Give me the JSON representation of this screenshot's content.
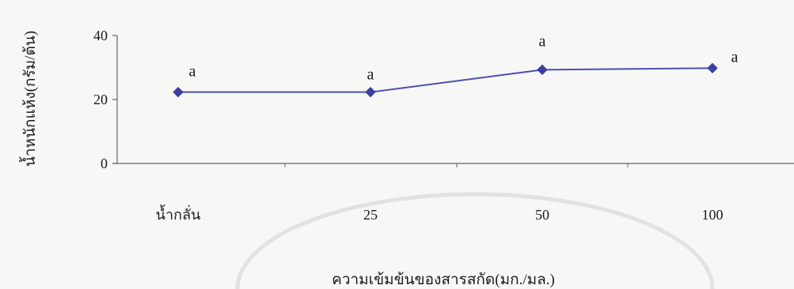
{
  "chart_data": {
    "type": "line",
    "categories": [
      "น้ำกลั่น",
      "25",
      "50",
      "100"
    ],
    "series": [
      {
        "values": [
          22.3,
          22.3,
          29.3,
          29.8
        ],
        "labels": [
          "a",
          "a",
          "a",
          "a"
        ]
      }
    ],
    "xlabel": "ความเข้มข้นของสารสกัด(มก./มล.)",
    "ylabel": "น้ำหนักแห้ง(กรัม/ต้น)",
    "ylim": [
      0,
      40
    ],
    "yticks": [
      "0",
      "20",
      "40"
    ],
    "grid": false,
    "legend": "none",
    "colors": {
      "line": "#4a4fb5",
      "marker": "#3d3fa0",
      "axis": "#666666",
      "watermark": "#e2e2e2"
    }
  }
}
